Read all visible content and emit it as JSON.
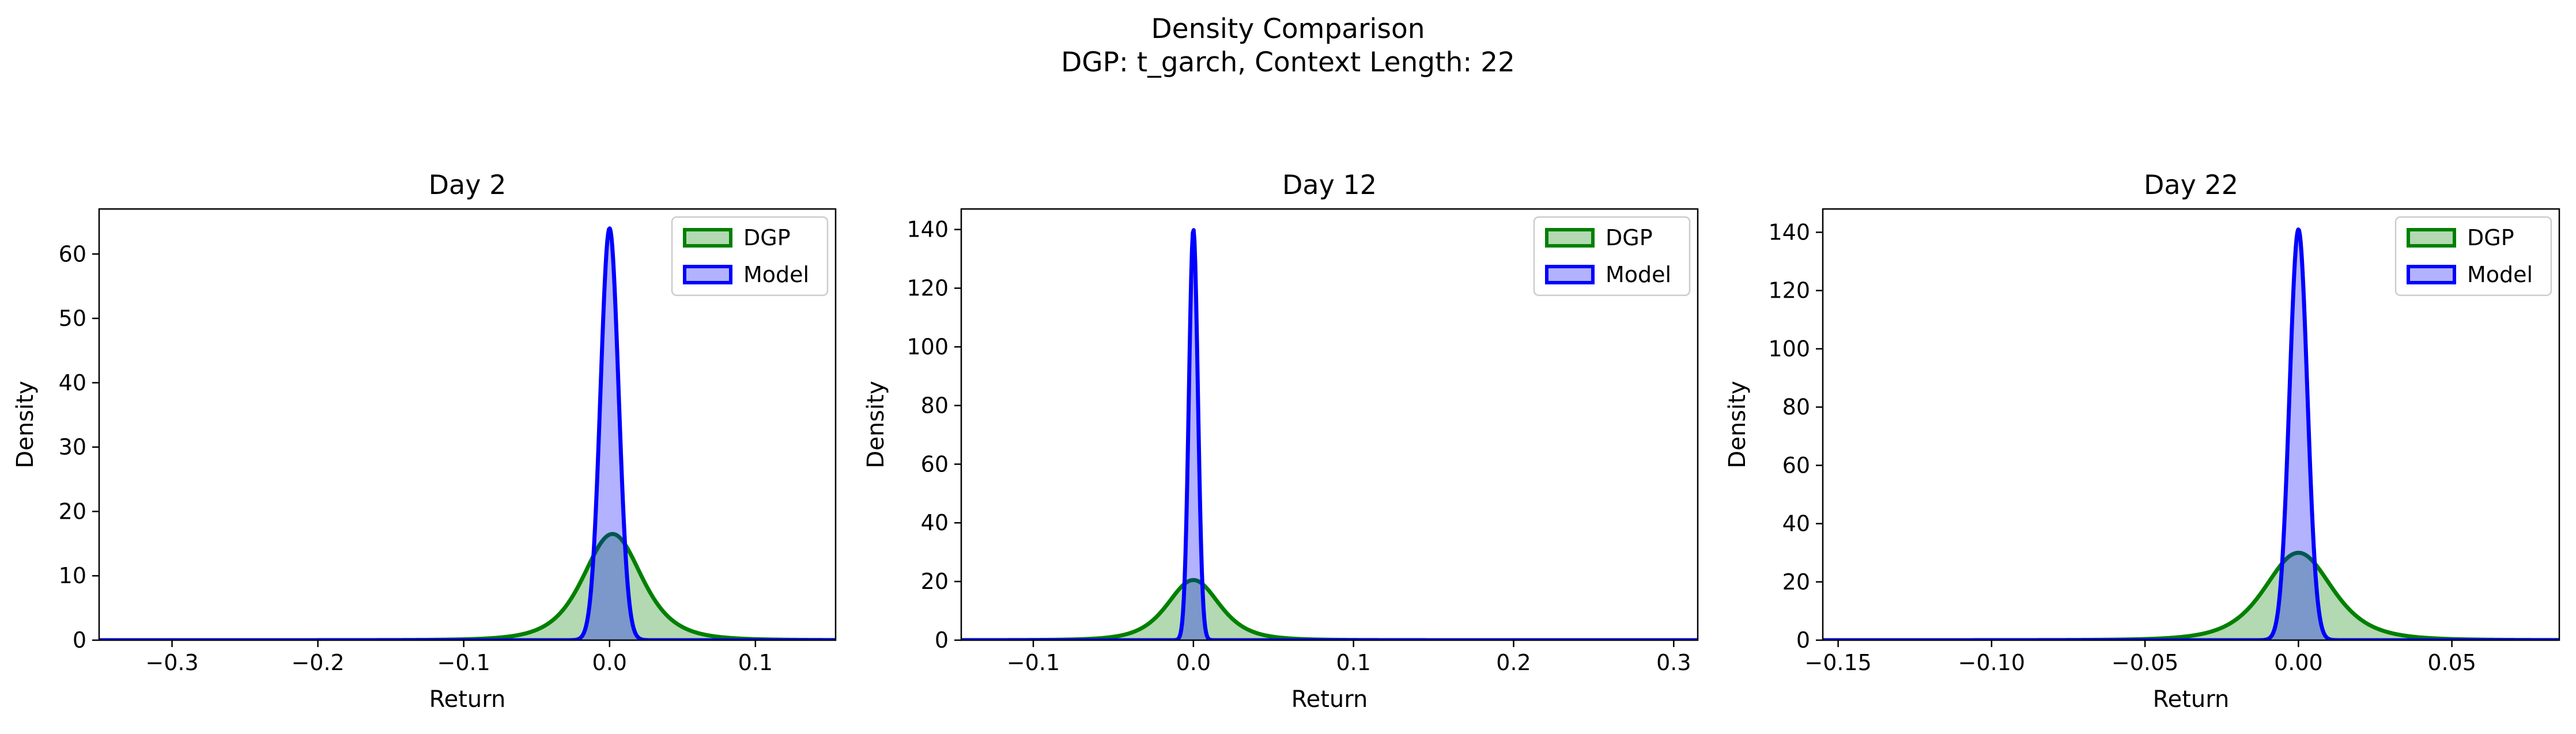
{
  "figure": {
    "title_line1": "Density Comparison",
    "title_line2": "DGP: t_garch, Context Length: 22"
  },
  "colors": {
    "dgp_line": "#008000",
    "dgp_fill": "#9fd19f",
    "model_line": "#0000ff",
    "model_fill": "#a9a9ff",
    "overlap_fill": "#7a8fc6"
  },
  "chart_data": [
    {
      "type": "area",
      "title": "Day 2",
      "xlabel": "Return",
      "ylabel": "Density",
      "xlim": [
        -0.35,
        0.155
      ],
      "ylim": [
        0,
        67
      ],
      "xticks": [
        -0.3,
        -0.2,
        -0.1,
        0.0,
        0.1
      ],
      "xtick_labels": [
        "−0.3",
        "−0.2",
        "−0.1",
        "0.0",
        "0.1"
      ],
      "yticks": [
        0,
        10,
        20,
        30,
        40,
        50,
        60
      ],
      "ytick_labels": [
        "0",
        "10",
        "20",
        "30",
        "40",
        "50",
        "60"
      ],
      "grid": false,
      "legend": "top-right",
      "series": [
        {
          "name": "DGP",
          "dist": "t",
          "center": 0.002,
          "scale": 0.021,
          "dof": 4,
          "peak": 16.5
        },
        {
          "name": "Model",
          "dist": "normal",
          "center": 0.0,
          "scale": 0.0062,
          "peak": 64
        }
      ]
    },
    {
      "type": "area",
      "title": "Day 12",
      "xlabel": "Return",
      "ylabel": "Density",
      "xlim": [
        -0.145,
        0.315
      ],
      "ylim": [
        0,
        147
      ],
      "xticks": [
        -0.1,
        0.0,
        0.1,
        0.2,
        0.3
      ],
      "xtick_labels": [
        "−0.1",
        "0.0",
        "0.1",
        "0.2",
        "0.3"
      ],
      "yticks": [
        0,
        20,
        40,
        60,
        80,
        100,
        120,
        140
      ],
      "ytick_labels": [
        "0",
        "20",
        "40",
        "60",
        "80",
        "100",
        "120",
        "140"
      ],
      "grid": false,
      "legend": "top-right",
      "series": [
        {
          "name": "DGP",
          "dist": "t",
          "center": 0.0,
          "scale": 0.017,
          "dof": 4,
          "peak": 20.5
        },
        {
          "name": "Model",
          "dist": "normal",
          "center": 0.0,
          "scale": 0.0028,
          "peak": 140
        }
      ]
    },
    {
      "type": "area",
      "title": "Day 22",
      "xlabel": "Return",
      "ylabel": "Density",
      "xlim": [
        -0.155,
        0.085
      ],
      "ylim": [
        0,
        148
      ],
      "xticks": [
        -0.15,
        -0.1,
        -0.05,
        0.0,
        0.05
      ],
      "xtick_labels": [
        "−0.15",
        "−0.10",
        "−0.05",
        "0.00",
        "0.05"
      ],
      "yticks": [
        0,
        20,
        40,
        60,
        80,
        100,
        120,
        140
      ],
      "ytick_labels": [
        "0",
        "20",
        "40",
        "60",
        "80",
        "100",
        "120",
        "140"
      ],
      "grid": false,
      "legend": "top-right",
      "series": [
        {
          "name": "DGP",
          "dist": "t",
          "center": 0.0,
          "scale": 0.0115,
          "dof": 4,
          "peak": 30
        },
        {
          "name": "Model",
          "dist": "normal",
          "center": 0.0,
          "scale": 0.0029,
          "peak": 141
        }
      ]
    }
  ]
}
